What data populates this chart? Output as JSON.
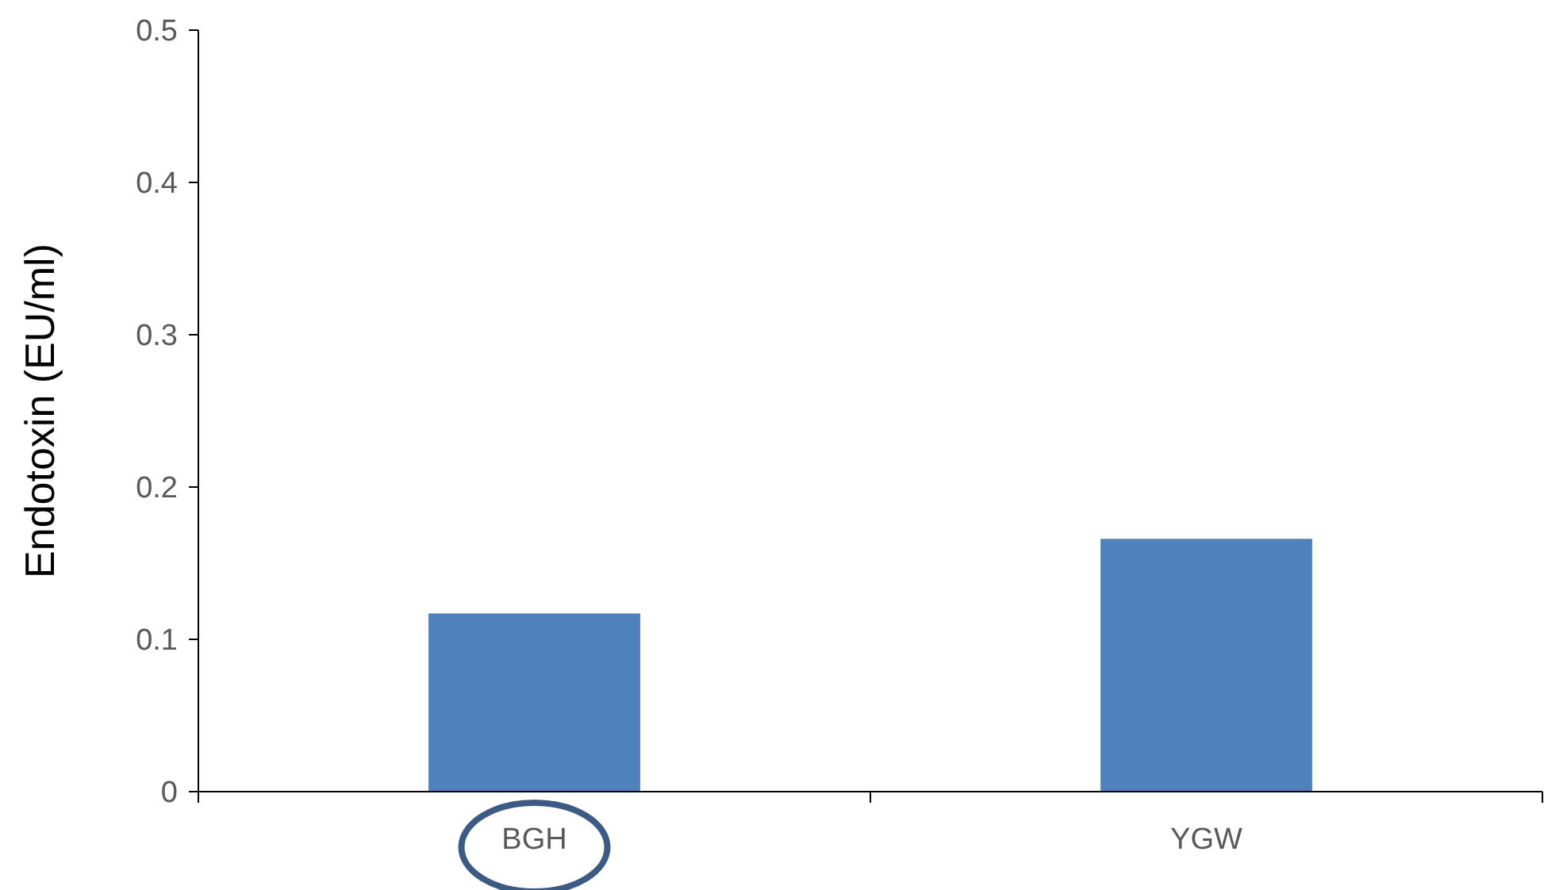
{
  "chart_data": {
    "type": "bar",
    "ylabel": "Endotoxin (EU/ml)",
    "categories": [
      "BGH",
      "YGW"
    ],
    "series": [
      {
        "color": "#4f81bd",
        "values": [
          0.117,
          0.166
        ]
      }
    ],
    "ylim": [
      0,
      0.5
    ],
    "yticks": [
      0,
      0.1,
      0.2,
      0.3,
      0.4,
      0.5
    ],
    "grid": false
  }
}
